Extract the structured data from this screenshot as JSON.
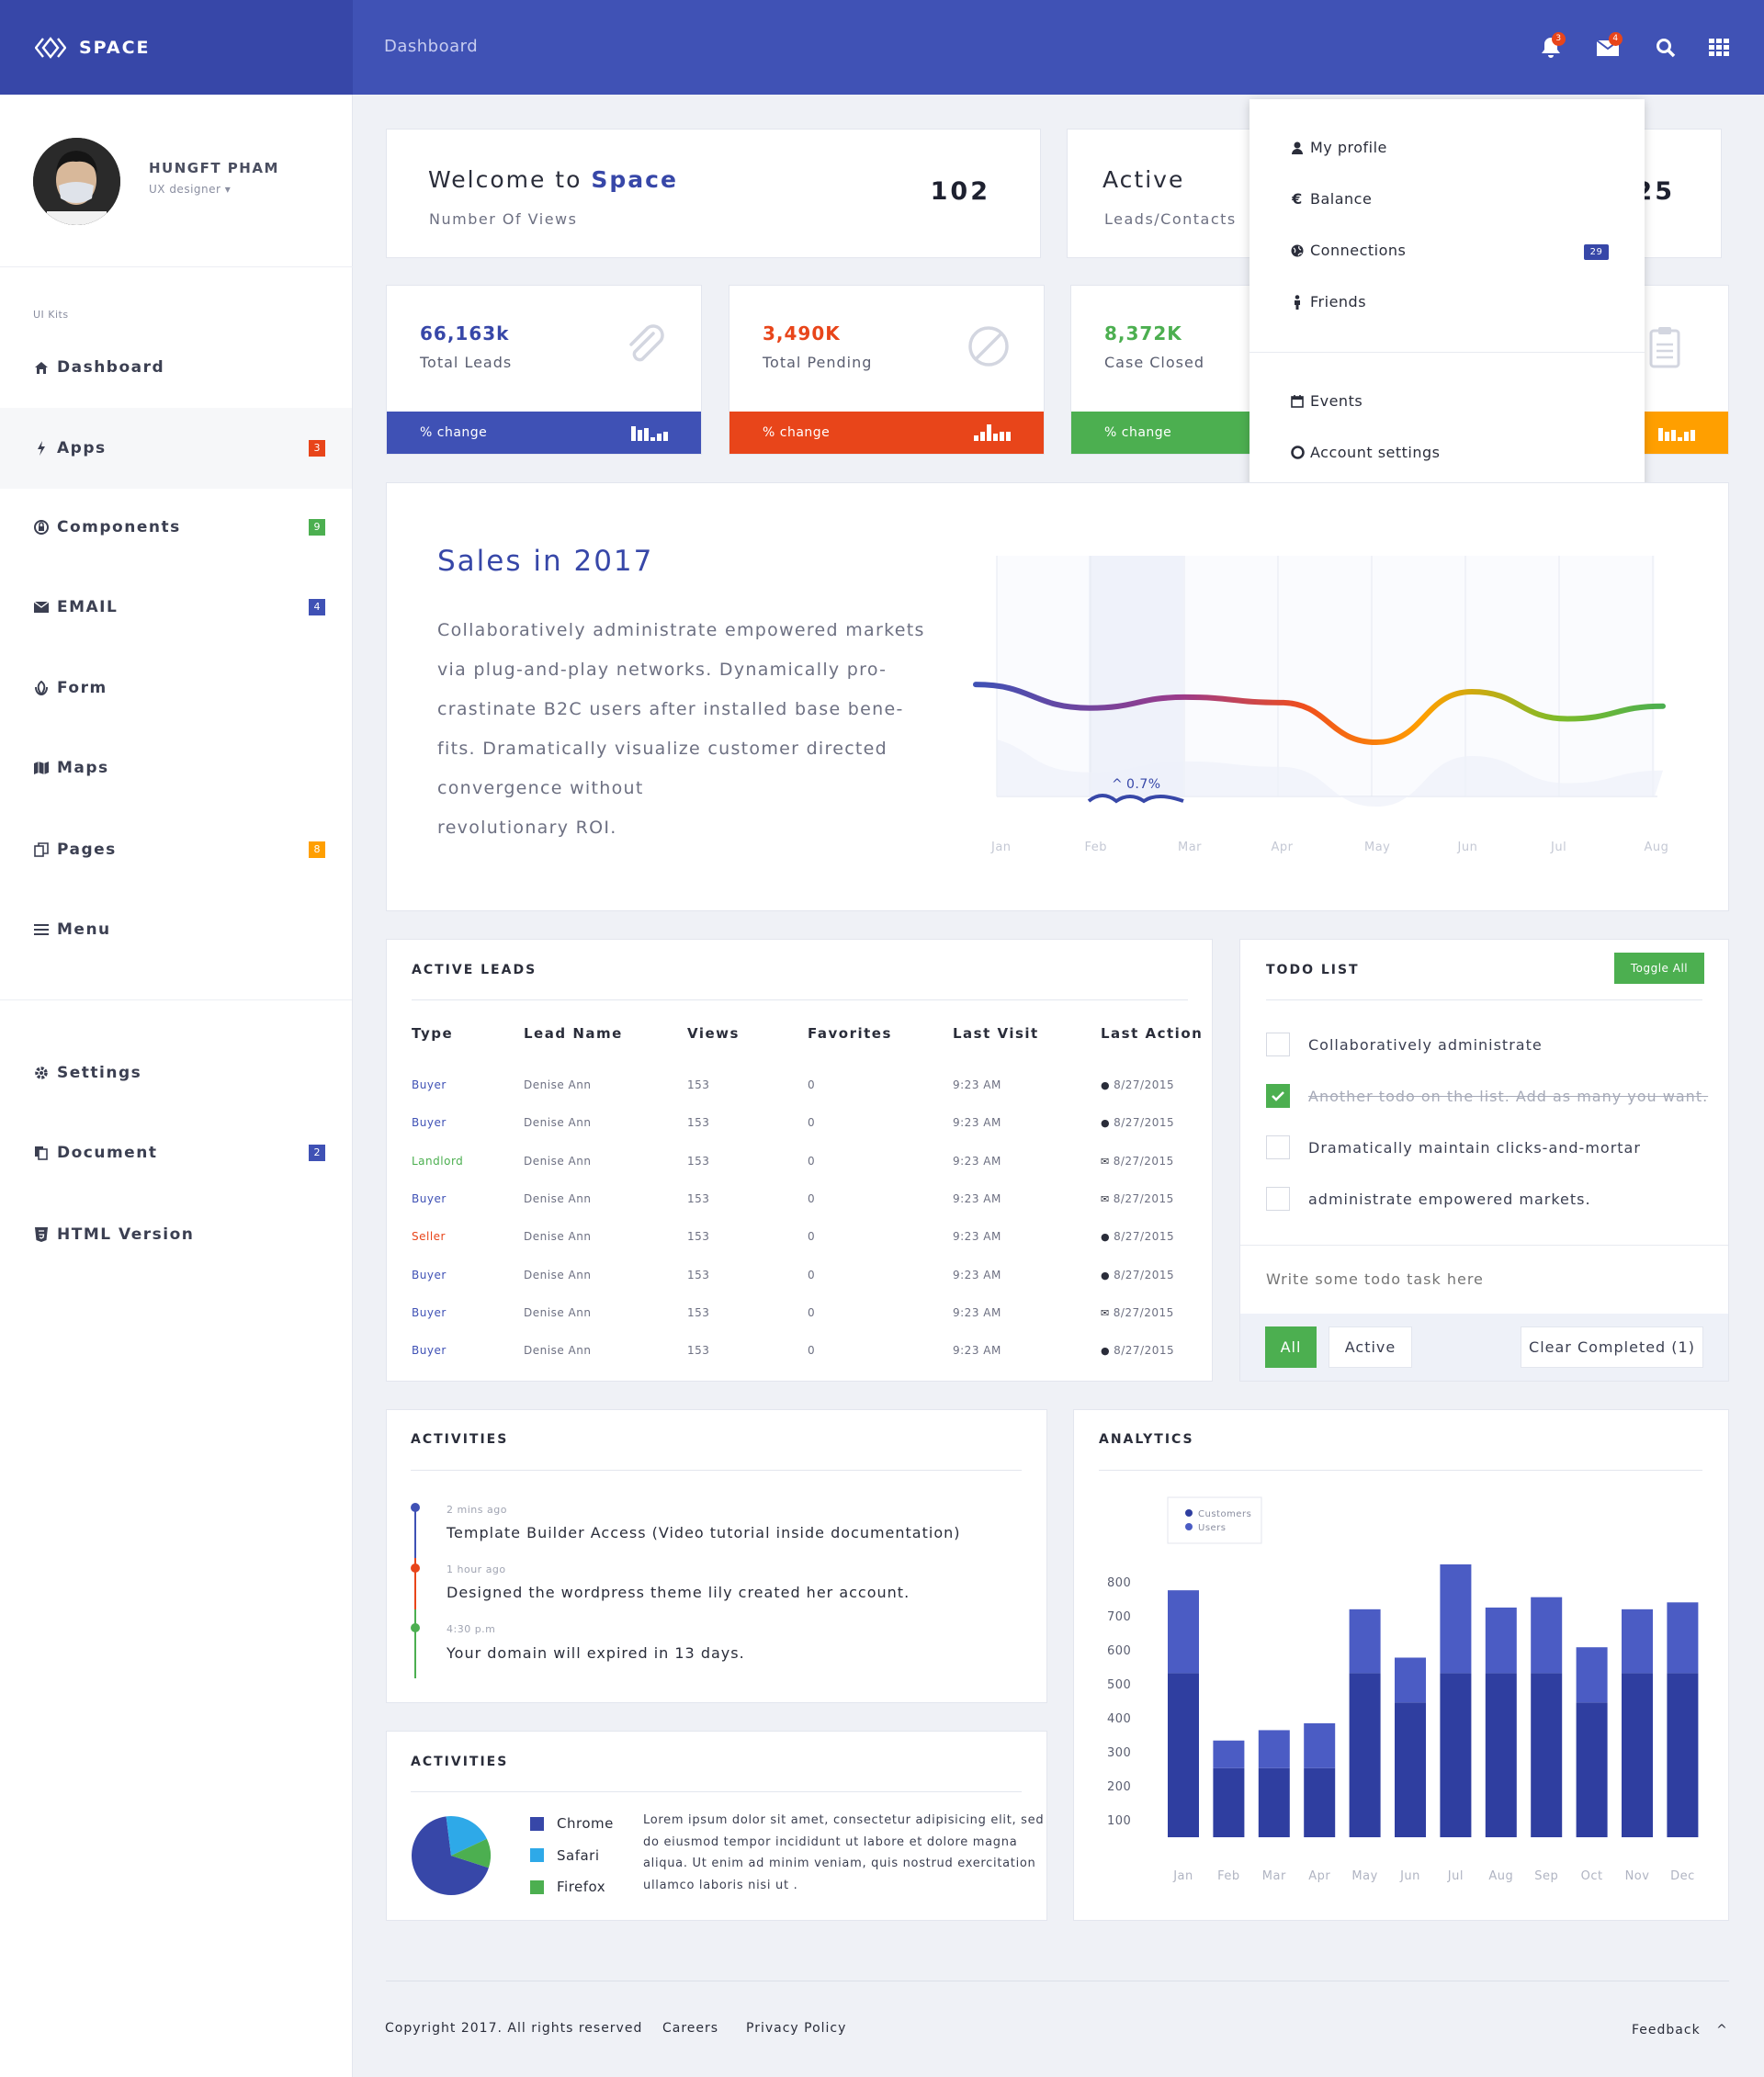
{
  "brand": {
    "name": "SPACE"
  },
  "header": {
    "breadcrumb": "Dashboard",
    "notifications_count": "3",
    "messages_count": "4"
  },
  "profile": {
    "name": "HUNGFT PHAM",
    "role": "UX designer"
  },
  "sidebar": {
    "section_label": "UI Kits",
    "items": [
      {
        "label": "Dashboard",
        "badge": ""
      },
      {
        "label": "Apps",
        "badge": "3"
      },
      {
        "label": "Components",
        "badge": "9"
      },
      {
        "label": "EMAIL",
        "badge": "4"
      },
      {
        "label": "Form",
        "badge": ""
      },
      {
        "label": "Maps",
        "badge": ""
      },
      {
        "label": "Pages",
        "badge": "8"
      },
      {
        "label": "Menu",
        "badge": ""
      }
    ],
    "bottom_items": [
      {
        "label": "Settings",
        "badge": ""
      },
      {
        "label": "Document",
        "badge": "2"
      },
      {
        "label": "HTML Version",
        "badge": ""
      }
    ]
  },
  "welcome": {
    "title_prefix": "Welcome to",
    "title_brand": "Space",
    "subtitle": "Number Of Views",
    "value": "102"
  },
  "active_card": {
    "title": "Active",
    "subtitle": "Leads/Contacts",
    "value": "25"
  },
  "stats": [
    {
      "value": "66,163k",
      "label": "Total Leads",
      "change": "% change",
      "color": "#3f51b5"
    },
    {
      "value": "3,490K",
      "label": "Total Pending",
      "change": "% change",
      "color": "#e8451a"
    },
    {
      "value": "8,372K",
      "label": "Case Closed",
      "change": "% change",
      "color": "#4caf50"
    },
    {
      "value": "",
      "label": "",
      "change": "",
      "color": "#ff9f00"
    }
  ],
  "profile_menu": {
    "items": [
      "My profile",
      "Balance",
      "Connections",
      "Friends"
    ],
    "connections_badge": "29",
    "items2": [
      "Events",
      "Account settings"
    ]
  },
  "sales": {
    "title": "Sales in 2017",
    "lines": [
      "Collaboratively administrate empowered markets",
      "via plug-and-play networks. Dynamically pro-",
      "crastinate B2C users after installed base bene-",
      "fits. Dramatically visualize customer directed",
      "convergence without",
      "revolutionary ROI."
    ],
    "highlight": "0.7%"
  },
  "chart_data": [
    {
      "type": "line",
      "categories": [
        "Jan",
        "Feb",
        "Mar",
        "Apr",
        "May",
        "Jun",
        "Jul",
        "Aug"
      ],
      "values": [
        62,
        49,
        55,
        52,
        30,
        58,
        43,
        50
      ],
      "title": "",
      "ylim": [
        0,
        100
      ]
    },
    {
      "type": "bar",
      "title": "ANALYTICS",
      "categories": [
        "Jan",
        "Feb",
        "Mar",
        "Apr",
        "May",
        "Jun",
        "Jul",
        "Aug",
        "Sep",
        "Oct",
        "Nov",
        "Dec"
      ],
      "series": [
        {
          "name": "Customers",
          "values": [
            475,
            200,
            200,
            200,
            475,
            390,
            475,
            475,
            475,
            390,
            475,
            475
          ],
          "color": "#2f3ea0"
        },
        {
          "name": "Users",
          "values": [
            240,
            80,
            110,
            130,
            185,
            130,
            315,
            190,
            220,
            160,
            185,
            205
          ],
          "color": "#4b5cc4"
        }
      ],
      "yticks": [
        100,
        200,
        300,
        400,
        500,
        600,
        700,
        800
      ],
      "ylim": [
        50,
        800
      ]
    },
    {
      "type": "pie",
      "title": "ACTIVITIES",
      "categories": [
        "Chrome",
        "Safari",
        "Firefox"
      ],
      "values": [
        68,
        20,
        12
      ],
      "colors": [
        "#3747a8",
        "#2ea9e8",
        "#4caf50"
      ]
    }
  ],
  "leads": {
    "title": "ACTIVE LEADS",
    "columns": [
      "Type",
      "Lead Name",
      "Views",
      "Favorites",
      "Last Visit",
      "Last Action"
    ],
    "rows": [
      {
        "type": "Buyer",
        "name": "Denise Ann",
        "views": "153",
        "fav": "0",
        "visit": "9:23 AM",
        "action": "8/27/2015",
        "type_color": "#3f51b5",
        "icon": "globe"
      },
      {
        "type": "Buyer",
        "name": "Denise Ann",
        "views": "153",
        "fav": "0",
        "visit": "9:23 AM",
        "action": "8/27/2015",
        "type_color": "#3f51b5",
        "icon": "globe"
      },
      {
        "type": "Landlord",
        "name": "Denise Ann",
        "views": "153",
        "fav": "0",
        "visit": "9:23 AM",
        "action": "8/27/2015",
        "type_color": "#4caf50",
        "icon": "mail"
      },
      {
        "type": "Buyer",
        "name": "Denise Ann",
        "views": "153",
        "fav": "0",
        "visit": "9:23 AM",
        "action": "8/27/2015",
        "type_color": "#3f51b5",
        "icon": "mail"
      },
      {
        "type": "Seller",
        "name": "Denise Ann",
        "views": "153",
        "fav": "0",
        "visit": "9:23 AM",
        "action": "8/27/2015",
        "type_color": "#e8451a",
        "icon": "globe"
      },
      {
        "type": "Buyer",
        "name": "Denise Ann",
        "views": "153",
        "fav": "0",
        "visit": "9:23 AM",
        "action": "8/27/2015",
        "type_color": "#3f51b5",
        "icon": "globe"
      },
      {
        "type": "Buyer",
        "name": "Denise Ann",
        "views": "153",
        "fav": "0",
        "visit": "9:23 AM",
        "action": "8/27/2015",
        "type_color": "#3f51b5",
        "icon": "mail"
      },
      {
        "type": "Buyer",
        "name": "Denise Ann",
        "views": "153",
        "fav": "0",
        "visit": "9:23 AM",
        "action": "8/27/2015",
        "type_color": "#3f51b5",
        "icon": "globe"
      }
    ]
  },
  "todo": {
    "title": "TODO LIST",
    "toggle": "Toggle All",
    "items": [
      {
        "text": "Collaboratively administrate",
        "done": false
      },
      {
        "text": "Another todo on the list. Add as many you want.",
        "done": true
      },
      {
        "text": "Dramatically maintain clicks-and-mortar",
        "done": false
      },
      {
        "text": "administrate empowered markets.",
        "done": false
      }
    ],
    "placeholder": "Write some todo task here",
    "filter_all": "All",
    "filter_active": "Active",
    "clear": "Clear Completed (1)"
  },
  "activities": {
    "title": "ACTIVITIES",
    "items": [
      {
        "time": "2 mins ago",
        "text": "Template Builder Access (Video tutorial inside documentation)",
        "color": "#3f51b5"
      },
      {
        "time": "1 hour ago",
        "text": "Designed the wordpress theme lily created her account.",
        "color": "#e8451a"
      },
      {
        "time": "4:30 p.m",
        "text": "Your domain will expired in 13 days.",
        "color": "#4caf50"
      }
    ]
  },
  "browsers": {
    "title": "ACTIVITIES",
    "lorem_lines": [
      "Lorem ipsum dolor sit amet, consectetur adipisicing elit, sed",
      "do eiusmod tempor incididunt ut labore et dolore magna",
      "aliqua. Ut enim ad minim veniam, quis nostrud exercitation",
      "ullamco laboris nisi ut ."
    ]
  },
  "footer": {
    "copyright": "Copyright 2017. All rights reserved",
    "careers": "Careers",
    "privacy": "Privacy Policy",
    "feedback": "Feedback"
  }
}
